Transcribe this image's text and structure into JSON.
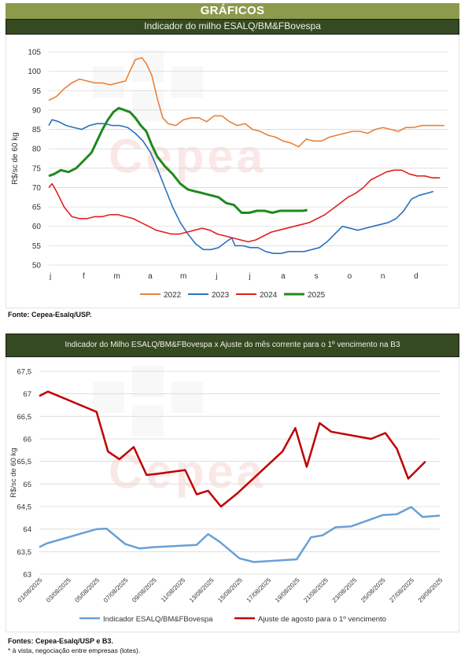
{
  "header": {
    "section_title": "GRÁFICOS"
  },
  "watermark": {
    "text": "Cepea"
  },
  "chart1": {
    "title": "Indicador do milho ESALQ/BM&FBovespa",
    "source": "Fonte: Cepea-Esalq/USP."
  },
  "chart2": {
    "title": "Indicador do Milho ESALQ/BM&FBovespa x Ajuste do mês corrente para o 1º vencimento na B3",
    "source": "Fontes: Cepea-Esalq/USP e B3.",
    "note": "* à vista, negociação entre empresas (lotes)."
  },
  "colors": {
    "2022": "#e8823a",
    "2023": "#2a72bd",
    "2024": "#e02020",
    "2025": "#1f8a1f",
    "indicador": "#6a9fd8",
    "ajuste": "#c00000",
    "header_bg": "#8c9a4c",
    "title_bg": "#354a20"
  },
  "chart_data": [
    {
      "type": "line",
      "ylabel": "R$/sc de 60 kg",
      "ylim": [
        50,
        105
      ],
      "yticks": [
        "50",
        "55",
        "60",
        "65",
        "70",
        "75",
        "80",
        "85",
        "90",
        "95",
        "100",
        "105"
      ],
      "xticks": [
        "j",
        "f",
        "m",
        "a",
        "m",
        "j",
        "j",
        "a",
        "s",
        "o",
        "n",
        "d"
      ],
      "x_note": "x values are day of year (1-365)",
      "grid": true,
      "legend_position": "bottom",
      "series": [
        {
          "name": "2022",
          "points": [
            [
              1,
              92.5
            ],
            [
              8,
              93.5
            ],
            [
              15,
              95.5
            ],
            [
              22,
              97
            ],
            [
              29,
              98
            ],
            [
              36,
              97.5
            ],
            [
              43,
              97
            ],
            [
              50,
              97
            ],
            [
              57,
              96.5
            ],
            [
              64,
              97
            ],
            [
              71,
              97.5
            ],
            [
              75,
              100
            ],
            [
              80,
              103
            ],
            [
              86,
              103.5
            ],
            [
              90,
              102
            ],
            [
              95,
              99
            ],
            [
              100,
              93
            ],
            [
              105,
              88
            ],
            [
              110,
              86.5
            ],
            [
              117,
              86
            ],
            [
              124,
              87.5
            ],
            [
              131,
              88
            ],
            [
              138,
              88
            ],
            [
              145,
              87
            ],
            [
              152,
              88.5
            ],
            [
              159,
              88.5
            ],
            [
              166,
              87
            ],
            [
              173,
              86
            ],
            [
              180,
              86.5
            ],
            [
              187,
              85
            ],
            [
              194,
              84.5
            ],
            [
              201,
              83.5
            ],
            [
              208,
              83
            ],
            [
              215,
              82
            ],
            [
              222,
              81.5
            ],
            [
              229,
              80.5
            ],
            [
              236,
              82.5
            ],
            [
              243,
              82
            ],
            [
              250,
              82
            ],
            [
              257,
              83
            ],
            [
              264,
              83.5
            ],
            [
              271,
              84
            ],
            [
              278,
              84.5
            ],
            [
              285,
              84.5
            ],
            [
              292,
              84
            ],
            [
              299,
              85
            ],
            [
              306,
              85.5
            ],
            [
              313,
              85
            ],
            [
              320,
              84.5
            ],
            [
              327,
              85.5
            ],
            [
              334,
              85.5
            ],
            [
              341,
              86
            ],
            [
              348,
              86
            ],
            [
              355,
              86
            ],
            [
              362,
              86
            ]
          ]
        },
        {
          "name": "2023",
          "points": [
            [
              1,
              86
            ],
            [
              4,
              87.5
            ],
            [
              10,
              87
            ],
            [
              17,
              86
            ],
            [
              24,
              85.5
            ],
            [
              31,
              85
            ],
            [
              38,
              86
            ],
            [
              45,
              86.5
            ],
            [
              52,
              86.5
            ],
            [
              59,
              86
            ],
            [
              66,
              86
            ],
            [
              73,
              85.5
            ],
            [
              80,
              84
            ],
            [
              87,
              82
            ],
            [
              94,
              79
            ],
            [
              100,
              75
            ],
            [
              107,
              70
            ],
            [
              114,
              65
            ],
            [
              121,
              61
            ],
            [
              128,
              58
            ],
            [
              135,
              55.5
            ],
            [
              142,
              54
            ],
            [
              149,
              54
            ],
            [
              156,
              54.5
            ],
            [
              163,
              56
            ],
            [
              168,
              57
            ],
            [
              171,
              55
            ],
            [
              178,
              55
            ],
            [
              185,
              54.5
            ],
            [
              192,
              54.5
            ],
            [
              199,
              53.5
            ],
            [
              206,
              53
            ],
            [
              213,
              53
            ],
            [
              220,
              53.5
            ],
            [
              227,
              53.5
            ],
            [
              234,
              53.5
            ],
            [
              241,
              54
            ],
            [
              248,
              54.5
            ],
            [
              255,
              56
            ],
            [
              262,
              58
            ],
            [
              269,
              60
            ],
            [
              276,
              59.5
            ],
            [
              283,
              59
            ],
            [
              290,
              59.5
            ],
            [
              297,
              60
            ],
            [
              304,
              60.5
            ],
            [
              311,
              61
            ],
            [
              318,
              62
            ],
            [
              325,
              64
            ],
            [
              332,
              67
            ],
            [
              339,
              68
            ],
            [
              346,
              68.5
            ],
            [
              352,
              69
            ]
          ]
        },
        {
          "name": "2024",
          "points": [
            [
              1,
              70
            ],
            [
              4,
              71
            ],
            [
              8,
              69
            ],
            [
              15,
              65
            ],
            [
              22,
              62.5
            ],
            [
              29,
              62
            ],
            [
              36,
              62
            ],
            [
              43,
              62.5
            ],
            [
              50,
              62.5
            ],
            [
              57,
              63
            ],
            [
              64,
              63
            ],
            [
              71,
              62.5
            ],
            [
              78,
              62
            ],
            [
              85,
              61
            ],
            [
              92,
              60
            ],
            [
              99,
              59
            ],
            [
              106,
              58.5
            ],
            [
              113,
              58
            ],
            [
              120,
              58
            ],
            [
              127,
              58.5
            ],
            [
              134,
              59
            ],
            [
              141,
              59.5
            ],
            [
              148,
              59
            ],
            [
              155,
              58
            ],
            [
              162,
              57.5
            ],
            [
              169,
              57
            ],
            [
              176,
              56.5
            ],
            [
              183,
              56
            ],
            [
              190,
              56.5
            ],
            [
              197,
              57.5
            ],
            [
              204,
              58.5
            ],
            [
              211,
              59
            ],
            [
              218,
              59.5
            ],
            [
              225,
              60
            ],
            [
              232,
              60.5
            ],
            [
              239,
              61
            ],
            [
              246,
              62
            ],
            [
              253,
              63
            ],
            [
              260,
              64.5
            ],
            [
              267,
              66
            ],
            [
              274,
              67.5
            ],
            [
              281,
              68.5
            ],
            [
              288,
              70
            ],
            [
              295,
              72
            ],
            [
              302,
              73
            ],
            [
              309,
              74
            ],
            [
              316,
              74.5
            ],
            [
              323,
              74.5
            ],
            [
              330,
              73.5
            ],
            [
              337,
              73
            ],
            [
              344,
              73
            ],
            [
              351,
              72.5
            ],
            [
              358,
              72.5
            ]
          ]
        },
        {
          "name": "2025",
          "points": [
            [
              1,
              73
            ],
            [
              6,
              73.5
            ],
            [
              12,
              74.5
            ],
            [
              19,
              74
            ],
            [
              26,
              75
            ],
            [
              33,
              77
            ],
            [
              40,
              79
            ],
            [
              45,
              82
            ],
            [
              50,
              85
            ],
            [
              55,
              87.5
            ],
            [
              60,
              89.5
            ],
            [
              65,
              90.5
            ],
            [
              70,
              90
            ],
            [
              75,
              89.5
            ],
            [
              80,
              88
            ],
            [
              85,
              86
            ],
            [
              90,
              84.5
            ],
            [
              95,
              81
            ],
            [
              100,
              78
            ],
            [
              107,
              75.5
            ],
            [
              114,
              73.5
            ],
            [
              121,
              71
            ],
            [
              128,
              69.5
            ],
            [
              135,
              69
            ],
            [
              142,
              68.5
            ],
            [
              149,
              68
            ],
            [
              156,
              67.5
            ],
            [
              163,
              66
            ],
            [
              170,
              65.5
            ],
            [
              177,
              63.5
            ],
            [
              184,
              63.5
            ],
            [
              191,
              64
            ],
            [
              198,
              64
            ],
            [
              205,
              63.5
            ],
            [
              212,
              64
            ],
            [
              219,
              64
            ],
            [
              226,
              64
            ],
            [
              233,
              64
            ],
            [
              237,
              64.2
            ]
          ]
        }
      ]
    },
    {
      "type": "line",
      "ylabel": "R$/sc de 60 kg",
      "ylim": [
        63,
        67.5
      ],
      "yticks": [
        "63",
        "63,5",
        "64",
        "64,5",
        "65",
        "65,5",
        "66",
        "66,5",
        "67",
        "67,5"
      ],
      "categories": [
        "01/08/2025",
        "02/08/2025",
        "03/08/2025",
        "04/08/2025",
        "05/08/2025",
        "06/08/2025",
        "07/08/2025",
        "08/08/2025",
        "09/08/2025",
        "10/08/2025",
        "11/08/2025",
        "12/08/2025",
        "13/08/2025",
        "14/08/2025",
        "15/08/2025",
        "16/08/2025",
        "17/08/2025",
        "18/08/2025",
        "19/08/2025",
        "20/08/2025",
        "21/08/2025",
        "22/08/2025",
        "23/08/2025",
        "24/08/2025",
        "25/08/2025",
        "26/08/2025",
        "27/08/2025",
        "28/08/2025",
        "29/08/2025"
      ],
      "xtick_labels": [
        "01/08/2025",
        "03/08/2025",
        "05/08/2025",
        "07/08/2025",
        "09/08/2025",
        "11/08/2025",
        "13/08/2025",
        "15/08/2025",
        "17/08/2025",
        "19/08/2025",
        "21/08/2025",
        "23/08/2025",
        "25/08/2025",
        "27/08/2025",
        "29/08/2025"
      ],
      "grid": true,
      "legend_position": "bottom",
      "series": [
        {
          "name": "Indicador ESALQ/BM&FBovespa",
          "points": [
            [
              0,
              63.6
            ],
            [
              0.5,
              63.68
            ],
            [
              4,
              64.0
            ],
            [
              4.7,
              64.01
            ],
            [
              6,
              63.67
            ],
            [
              7,
              63.57
            ],
            [
              8,
              63.6
            ],
            [
              11,
              63.65
            ],
            [
              11.8,
              63.89
            ],
            [
              12.6,
              63.72
            ],
            [
              14,
              63.35
            ],
            [
              15,
              63.27
            ],
            [
              18,
              63.33
            ],
            [
              19,
              63.82
            ],
            [
              19.8,
              63.86
            ],
            [
              20.7,
              64.04
            ],
            [
              21.8,
              64.06
            ],
            [
              24,
              64.31
            ],
            [
              25,
              64.33
            ],
            [
              26,
              64.49
            ],
            [
              26.8,
              64.27
            ],
            [
              28,
              64.3
            ]
          ]
        },
        {
          "name": "Ajuste de agosto para o 1º vencimento",
          "points": [
            [
              0,
              66.95
            ],
            [
              0.6,
              67.05
            ],
            [
              4,
              66.6
            ],
            [
              4.8,
              65.72
            ],
            [
              5.6,
              65.55
            ],
            [
              6.6,
              65.82
            ],
            [
              7.5,
              65.2
            ],
            [
              8.1,
              65.22
            ],
            [
              10.2,
              65.31
            ],
            [
              11,
              64.77
            ],
            [
              11.8,
              64.85
            ],
            [
              12.7,
              64.5
            ],
            [
              13.8,
              64.78
            ],
            [
              17,
              65.72
            ],
            [
              17.9,
              66.24
            ],
            [
              18.7,
              65.38
            ],
            [
              19.6,
              66.35
            ],
            [
              20.4,
              66.16
            ],
            [
              23.2,
              66.0
            ],
            [
              24.2,
              66.13
            ],
            [
              25,
              65.78
            ],
            [
              25.8,
              65.12
            ],
            [
              27,
              65.5
            ]
          ]
        }
      ]
    }
  ]
}
